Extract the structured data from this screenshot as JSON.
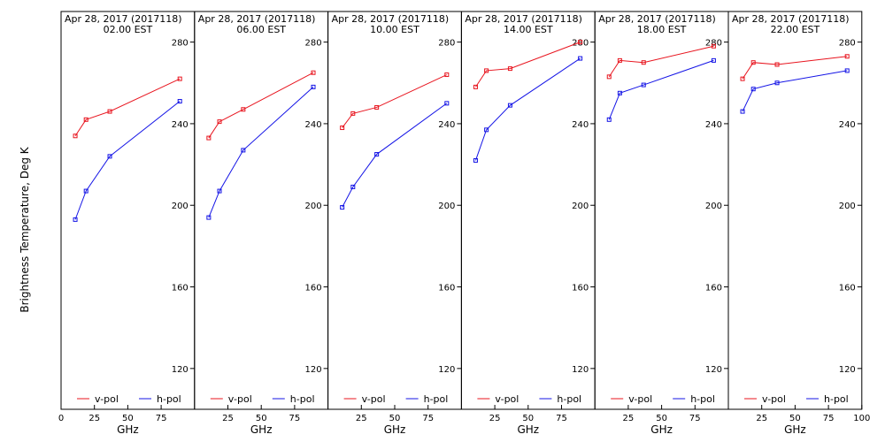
{
  "chart_data": {
    "type": "line",
    "ylabel": "Brightness Temperature, Deg K",
    "xlabel": "GHz",
    "xlim": [
      0,
      100
    ],
    "ylim": [
      100,
      295
    ],
    "yticks": [
      120,
      160,
      200,
      240,
      280
    ],
    "xticks_first_panel": [
      0,
      25,
      50,
      75
    ],
    "xticks": [
      25,
      50,
      75
    ],
    "xticks_last_panel": [
      25,
      50,
      75,
      100
    ],
    "x": [
      10.65,
      18.7,
      36.5,
      89.0
    ],
    "legend": [
      "v-pol",
      "h-pol"
    ],
    "colors": {
      "v-pol": "#e8141e",
      "h-pol": "#1414e6"
    },
    "grid": false,
    "panels": [
      {
        "title": "Apr 28, 2017 (2017118)",
        "subtitle": "02.00 EST",
        "series": [
          {
            "name": "v-pol",
            "values": [
              234,
              242,
              246,
              262
            ]
          },
          {
            "name": "h-pol",
            "values": [
              193,
              207,
              224,
              251
            ]
          }
        ]
      },
      {
        "title": "Apr 28, 2017 (2017118)",
        "subtitle": "06.00 EST",
        "series": [
          {
            "name": "v-pol",
            "values": [
              233,
              241,
              247,
              265
            ]
          },
          {
            "name": "h-pol",
            "values": [
              194,
              207,
              227,
              258
            ]
          }
        ]
      },
      {
        "title": "Apr 28, 2017 (2017118)",
        "subtitle": "10.00 EST",
        "series": [
          {
            "name": "v-pol",
            "values": [
              238,
              245,
              248,
              264
            ]
          },
          {
            "name": "h-pol",
            "values": [
              199,
              209,
              225,
              250
            ]
          }
        ]
      },
      {
        "title": "Apr 28, 2017 (2017118)",
        "subtitle": "14.00 EST",
        "series": [
          {
            "name": "v-pol",
            "values": [
              258,
              266,
              267,
              280
            ]
          },
          {
            "name": "h-pol",
            "values": [
              222,
              237,
              249,
              272
            ]
          }
        ]
      },
      {
        "title": "Apr 28, 2017 (2017118)",
        "subtitle": "18.00 EST",
        "series": [
          {
            "name": "v-pol",
            "values": [
              263,
              271,
              270,
              278
            ]
          },
          {
            "name": "h-pol",
            "values": [
              242,
              255,
              259,
              271
            ]
          }
        ]
      },
      {
        "title": "Apr 28, 2017 (2017118)",
        "subtitle": "22.00 EST",
        "series": [
          {
            "name": "v-pol",
            "values": [
              262,
              270,
              269,
              273
            ]
          },
          {
            "name": "h-pol",
            "values": [
              246,
              257,
              260,
              266
            ]
          }
        ]
      }
    ]
  }
}
